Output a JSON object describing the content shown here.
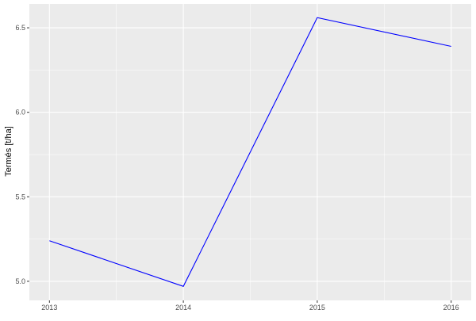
{
  "chart_data": {
    "type": "line",
    "title": "",
    "xlabel": "",
    "ylabel": "Termés [t/ha]",
    "x": [
      2013,
      2014,
      2015,
      2016
    ],
    "series": [
      {
        "values": [
          5.24,
          4.97,
          6.56,
          6.39
        ],
        "color": "#0000FF"
      }
    ],
    "xticks": [
      "2013",
      "2014",
      "2015",
      "2016"
    ],
    "yticks": [
      "5.0",
      "5.5",
      "6.0",
      "6.5"
    ],
    "xlim": [
      2012.85,
      2016.15
    ],
    "ylim": [
      4.887,
      6.641
    ],
    "grid": true,
    "panel_background": "#EBEBEB",
    "grid_color": "#FFFFFF"
  }
}
